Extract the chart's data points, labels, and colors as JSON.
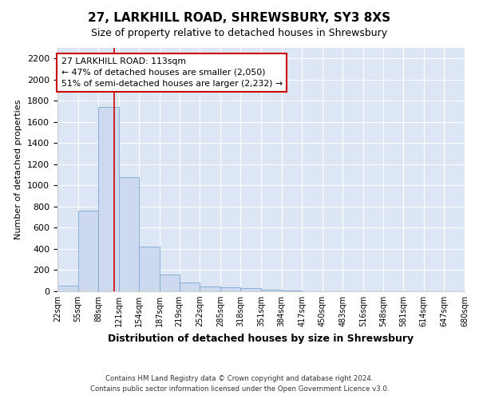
{
  "title_line1": "27, LARKHILL ROAD, SHREWSBURY, SY3 8XS",
  "title_line2": "Size of property relative to detached houses in Shrewsbury",
  "xlabel": "Distribution of detached houses by size in Shrewsbury",
  "ylabel": "Number of detached properties",
  "bin_edges": [
    22,
    55,
    88,
    121,
    154,
    187,
    219,
    252,
    285,
    318,
    351,
    384,
    417,
    450,
    483,
    516,
    548,
    581,
    614,
    647,
    680
  ],
  "bin_labels": [
    "22sqm",
    "55sqm",
    "88sqm",
    "121sqm",
    "154sqm",
    "187sqm",
    "219sqm",
    "252sqm",
    "285sqm",
    "318sqm",
    "351sqm",
    "384sqm",
    "417sqm",
    "450sqm",
    "483sqm",
    "516sqm",
    "548sqm",
    "581sqm",
    "614sqm",
    "647sqm",
    "680sqm"
  ],
  "bar_heights": [
    55,
    760,
    1740,
    1075,
    420,
    155,
    85,
    47,
    40,
    28,
    18,
    5,
    2,
    1,
    1,
    0,
    0,
    0,
    0,
    0
  ],
  "bar_color": "#cdd9ee",
  "bar_edge_color": "#7ba7d0",
  "vline_x": 113,
  "vline_color": "#cc0000",
  "annotation_text": "27 LARKHILL ROAD: 113sqm\n← 47% of detached houses are smaller (2,050)\n51% of semi-detached houses are larger (2,232) →",
  "annotation_box_color": "#ffffff",
  "annotation_box_edge": "#cc0000",
  "ylim": [
    0,
    2300
  ],
  "yticks": [
    0,
    200,
    400,
    600,
    800,
    1000,
    1200,
    1400,
    1600,
    1800,
    2000,
    2200
  ],
  "background_color": "#dce6f5",
  "grid_color": "#ffffff",
  "figure_bg": "#ffffff",
  "footer_line1": "Contains HM Land Registry data © Crown copyright and database right 2024.",
  "footer_line2": "Contains public sector information licensed under the Open Government Licence v3.0."
}
